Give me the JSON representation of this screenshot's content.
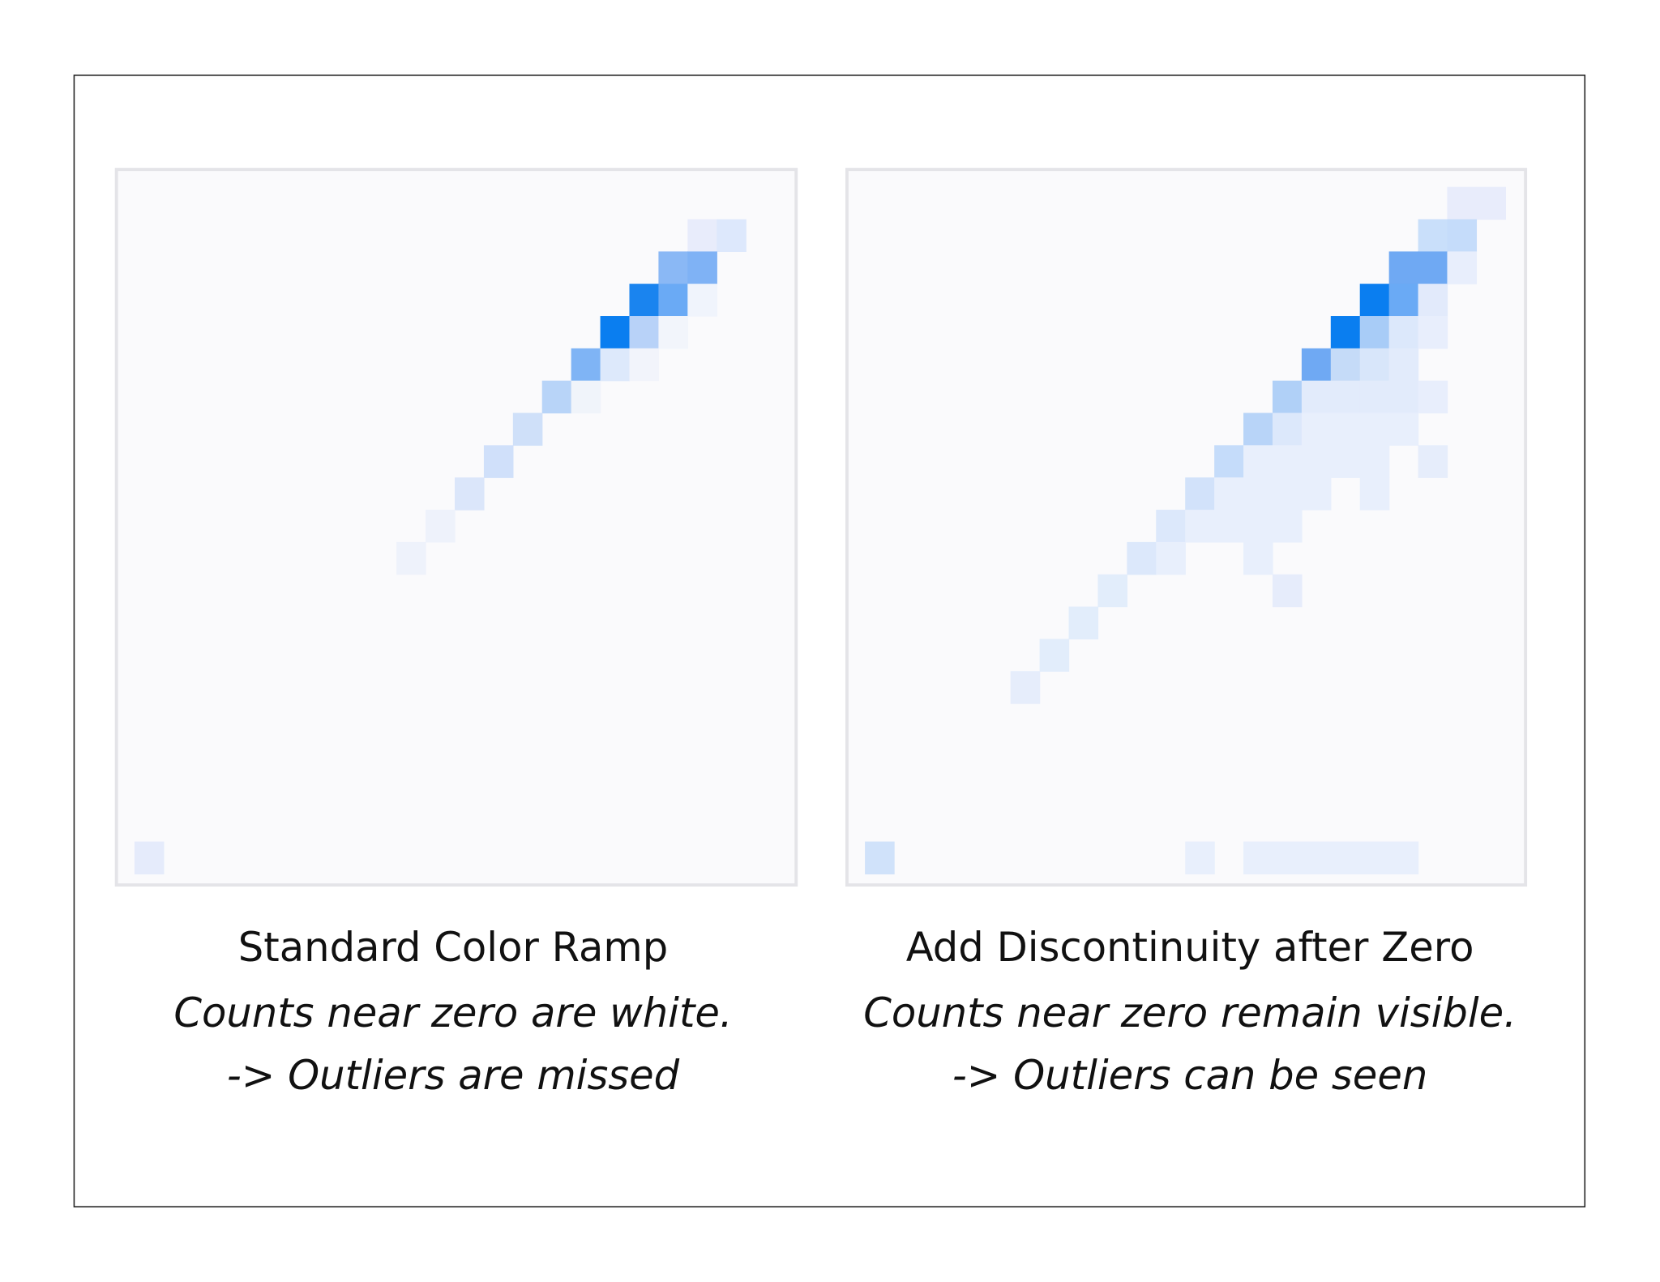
{
  "left": {
    "title": "Standard Color Ramp",
    "line1": "Counts near zero are white.",
    "line2": "-> Outliers are missed"
  },
  "right": {
    "title": "Add Discontinuity after Zero",
    "line1": "Counts near zero remain visible.",
    "line2": "-> Outliers can be seen"
  }
}
